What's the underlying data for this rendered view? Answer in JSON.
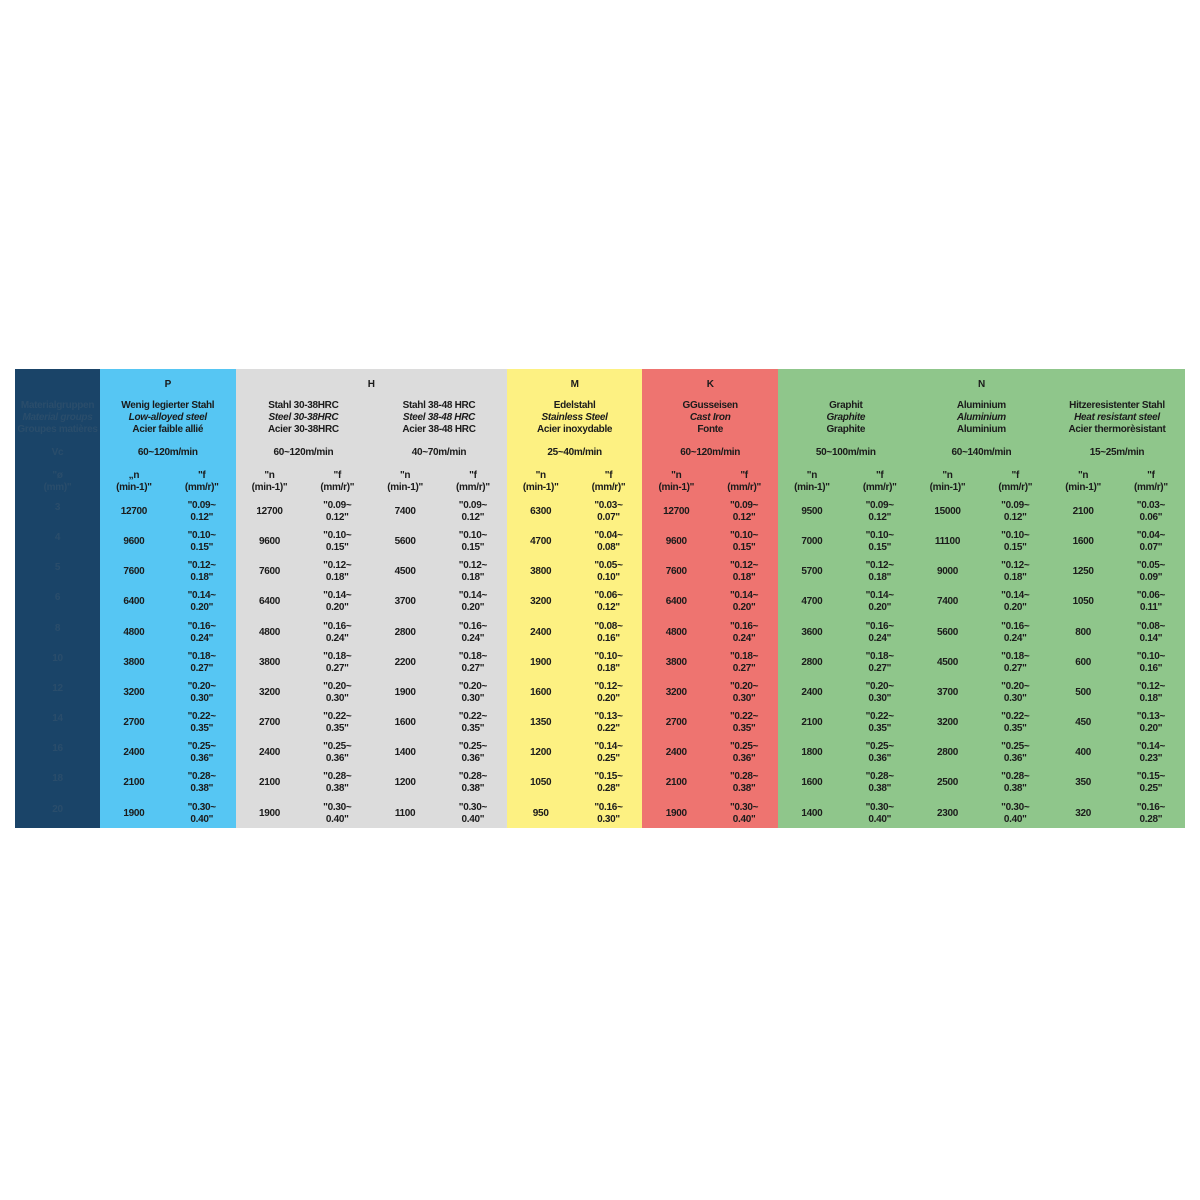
{
  "colors": {
    "left": "#1a4468",
    "P": "#56c6f3",
    "H": "#dcdcdc",
    "M": "#fdf182",
    "K": "#ee7470",
    "N": "#8fc68b"
  },
  "left": {
    "labels": [
      "Materialgruppen",
      "Material groups",
      "Groupes matières"
    ],
    "vc": "Vc",
    "d_header": "\"ø\n(mm)\"",
    "diameters": [
      "3",
      "4",
      "5",
      "6",
      "8",
      "10",
      "12",
      "14",
      "16",
      "18",
      "20"
    ]
  },
  "groups": [
    {
      "letter": "P",
      "color_key": "P",
      "materials": [
        {
          "names": [
            "Wenig legierter Stahl",
            "Low-alloyed steel",
            "Acier faible allié"
          ],
          "vc": "60~120m/min",
          "n_header": "„n\n(min-1)\"",
          "f_header": "\"f\n(mm/r)\"",
          "n": [
            "12700",
            "9600",
            "7600",
            "6400",
            "4800",
            "3800",
            "3200",
            "2700",
            "2400",
            "2100",
            "1900"
          ],
          "f": [
            "\"0.09~\n0.12\"",
            "\"0.10~\n0.15\"",
            "\"0.12~\n0.18\"",
            "\"0.14~\n0.20\"",
            "\"0.16~\n0.24\"",
            "\"0.18~\n0.27\"",
            "\"0.20~\n0.30\"",
            "\"0.22~\n0.35\"",
            "\"0.25~\n0.36\"",
            "\"0.28~\n0.38\"",
            "\"0.30~\n0.40\""
          ]
        }
      ]
    },
    {
      "letter": "H",
      "color_key": "H",
      "materials": [
        {
          "names": [
            "Stahl 30-38HRC",
            "Steel 30-38HRC",
            "Acier 30-38HRC"
          ],
          "vc": "60~120m/min",
          "n_header": "\"n\n(min-1)\"",
          "f_header": "\"f\n(mm/r)\"",
          "n": [
            "12700",
            "9600",
            "7600",
            "6400",
            "4800",
            "3800",
            "3200",
            "2700",
            "2400",
            "2100",
            "1900"
          ],
          "f": [
            "\"0.09~\n0.12\"",
            "\"0.10~\n0.15\"",
            "\"0.12~\n0.18\"",
            "\"0.14~\n0.20\"",
            "\"0.16~\n0.24\"",
            "\"0.18~\n0.27\"",
            "\"0.20~\n0.30\"",
            "\"0.22~\n0.35\"",
            "\"0.25~\n0.36\"",
            "\"0.28~\n0.38\"",
            "\"0.30~\n0.40\""
          ]
        },
        {
          "names": [
            "Stahl 38-48 HRC",
            "Steel 38-48 HRC",
            "Acier 38-48 HRC"
          ],
          "vc": "40~70m/min",
          "n_header": "\"n\n(min-1)\"",
          "f_header": "\"f\n(mm/r)\"",
          "n": [
            "7400",
            "5600",
            "4500",
            "3700",
            "2800",
            "2200",
            "1900",
            "1600",
            "1400",
            "1200",
            "1100"
          ],
          "f": [
            "\"0.09~\n0.12\"",
            "\"0.10~\n0.15\"",
            "\"0.12~\n0.18\"",
            "\"0.14~\n0.20\"",
            "\"0.16~\n0.24\"",
            "\"0.18~\n0.27\"",
            "\"0.20~\n0.30\"",
            "\"0.22~\n0.35\"",
            "\"0.25~\n0.36\"",
            "\"0.28~\n0.38\"",
            "\"0.30~\n0.40\""
          ]
        }
      ]
    },
    {
      "letter": "M",
      "color_key": "M",
      "materials": [
        {
          "names": [
            "Edelstahl",
            "Stainless Steel",
            "Acier inoxydable"
          ],
          "vc": "25~40m/min",
          "n_header": "\"n\n(min-1)\"",
          "f_header": "\"f\n(mm/r)\"",
          "n": [
            "6300",
            "4700",
            "3800",
            "3200",
            "2400",
            "1900",
            "1600",
            "1350",
            "1200",
            "1050",
            "950"
          ],
          "f": [
            "\"0.03~\n0.07\"",
            "\"0.04~\n0.08\"",
            "\"0.05~\n0.10\"",
            "\"0.06~\n0.12\"",
            "\"0.08~\n0.16\"",
            "\"0.10~\n0.18\"",
            "\"0.12~\n0.20\"",
            "\"0.13~\n0.22\"",
            "\"0.14~\n0.25\"",
            "\"0.15~\n0.28\"",
            "\"0.16~\n0.30\""
          ]
        }
      ]
    },
    {
      "letter": "K",
      "color_key": "K",
      "materials": [
        {
          "names": [
            "GGusseisen",
            "Cast Iron",
            "Fonte"
          ],
          "vc": "60~120m/min",
          "n_header": "\"n\n(min-1)\"",
          "f_header": "\"f\n(mm/r)\"",
          "n": [
            "12700",
            "9600",
            "7600",
            "6400",
            "4800",
            "3800",
            "3200",
            "2700",
            "2400",
            "2100",
            "1900"
          ],
          "f": [
            "\"0.09~\n0.12\"",
            "\"0.10~\n0.15\"",
            "\"0.12~\n0.18\"",
            "\"0.14~\n0.20\"",
            "\"0.16~\n0.24\"",
            "\"0.18~\n0.27\"",
            "\"0.20~\n0.30\"",
            "\"0.22~\n0.35\"",
            "\"0.25~\n0.36\"",
            "\"0.28~\n0.38\"",
            "\"0.30~\n0.40\""
          ]
        }
      ]
    },
    {
      "letter": "N",
      "color_key": "N",
      "materials": [
        {
          "names": [
            "Graphit",
            "Graphite",
            "Graphite"
          ],
          "vc": "50~100m/min",
          "n_header": "\"n\n(min-1)\"",
          "f_header": "\"f\n(mm/r)\"",
          "n": [
            "9500",
            "7000",
            "5700",
            "4700",
            "3600",
            "2800",
            "2400",
            "2100",
            "1800",
            "1600",
            "1400"
          ],
          "f": [
            "\"0.09~\n0.12\"",
            "\"0.10~\n0.15\"",
            "\"0.12~\n0.18\"",
            "\"0.14~\n0.20\"",
            "\"0.16~\n0.24\"",
            "\"0.18~\n0.27\"",
            "\"0.20~\n0.30\"",
            "\"0.22~\n0.35\"",
            "\"0.25~\n0.36\"",
            "\"0.28~\n0.38\"",
            "\"0.30~\n0.40\""
          ]
        },
        {
          "names": [
            "Aluminium",
            "Aluminium",
            "Aluminium"
          ],
          "vc": "60~140m/min",
          "n_header": "\"n\n(min-1)\"",
          "f_header": "\"f\n(mm/r)\"",
          "n": [
            "15000",
            "11100",
            "9000",
            "7400",
            "5600",
            "4500",
            "3700",
            "3200",
            "2800",
            "2500",
            "2300"
          ],
          "f": [
            "\"0.09~\n0.12\"",
            "\"0.10~\n0.15\"",
            "\"0.12~\n0.18\"",
            "\"0.14~\n0.20\"",
            "\"0.16~\n0.24\"",
            "\"0.18~\n0.27\"",
            "\"0.20~\n0.30\"",
            "\"0.22~\n0.35\"",
            "\"0.25~\n0.36\"",
            "\"0.28~\n0.38\"",
            "\"0.30~\n0.40\""
          ]
        },
        {
          "names": [
            "Hitzeresistenter Stahl",
            "Heat resistant steel",
            "Acier thermorèsistant"
          ],
          "vc": "15~25m/min",
          "n_header": "\"n\n(min-1)\"",
          "f_header": "\"f\n(mm/r)\"",
          "n": [
            "2100",
            "1600",
            "1250",
            "1050",
            "800",
            "600",
            "500",
            "450",
            "400",
            "350",
            "320"
          ],
          "f": [
            "\"0.03~\n0.06\"",
            "\"0.04~\n0.07\"",
            "\"0.05~\n0.09\"",
            "\"0.06~\n0.11\"",
            "\"0.08~\n0.14\"",
            "\"0.10~\n0.16\"",
            "\"0.12~\n0.18\"",
            "\"0.13~\n0.20\"",
            "\"0.14~\n0.23\"",
            "\"0.15~\n0.25\"",
            "\"0.16~\n0.28\""
          ]
        }
      ]
    }
  ]
}
